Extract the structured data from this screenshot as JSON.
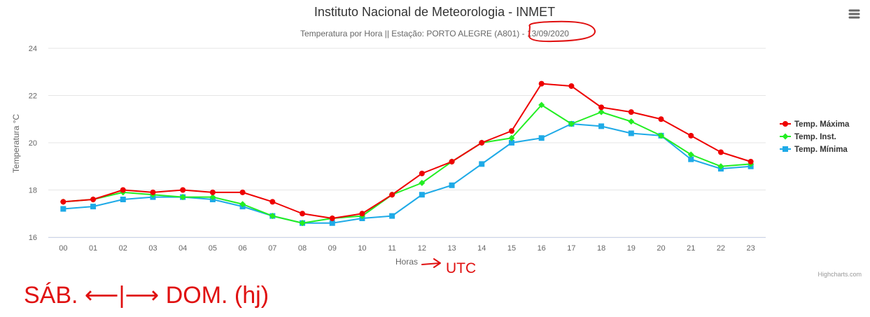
{
  "colors": {
    "max": "#ee0000",
    "inst": "#22ee22",
    "min": "#1eaae7",
    "annotation": "#e01010",
    "grid": "#e6e6e6",
    "axis_text": "#666666",
    "title": "#333333"
  },
  "icons": {
    "menu": "hamburger-menu-icon"
  },
  "credits": "Highcharts.com",
  "annotations": {
    "utc_label": "UTC",
    "handwriting": "SÁB. ⟵|⟶ DOM. (hj)"
  },
  "chart_data": {
    "type": "line",
    "title": "Instituto Nacional de Meteorologia - INMET",
    "subtitle": "Temperatura por Hora || Estação: PORTO ALEGRE (A801) - 13/09/2020",
    "xlabel": "Horas",
    "ylabel": "Temperatura °C",
    "categories": [
      "00",
      "01",
      "02",
      "03",
      "04",
      "05",
      "06",
      "07",
      "08",
      "09",
      "10",
      "11",
      "12",
      "13",
      "14",
      "15",
      "16",
      "17",
      "18",
      "19",
      "20",
      "21",
      "22",
      "23"
    ],
    "ylim": [
      16,
      24
    ],
    "yticks": [
      16,
      18,
      20,
      22,
      24
    ],
    "grid": true,
    "legend_position": "right",
    "series": [
      {
        "name": "Temp. Máxima",
        "key": "max",
        "marker": "circle",
        "values": [
          17.5,
          17.6,
          18.0,
          17.9,
          18.0,
          17.9,
          17.9,
          17.5,
          17.0,
          16.8,
          17.0,
          17.8,
          18.7,
          19.2,
          20.0,
          20.5,
          22.5,
          22.4,
          21.5,
          21.3,
          21.0,
          20.3,
          19.6,
          19.2
        ]
      },
      {
        "name": "Temp. Inst.",
        "key": "inst",
        "marker": "diamond",
        "values": [
          17.5,
          17.6,
          17.9,
          17.8,
          17.7,
          17.7,
          17.4,
          16.9,
          16.6,
          16.8,
          16.9,
          17.8,
          18.3,
          19.2,
          20.0,
          20.2,
          21.6,
          20.8,
          21.3,
          20.9,
          20.3,
          19.5,
          19.0,
          19.1
        ]
      },
      {
        "name": "Temp. Mínima",
        "key": "min",
        "marker": "square",
        "values": [
          17.2,
          17.3,
          17.6,
          17.7,
          17.7,
          17.6,
          17.3,
          16.9,
          16.6,
          16.6,
          16.8,
          16.9,
          17.8,
          18.2,
          19.1,
          20.0,
          20.2,
          20.8,
          20.7,
          20.4,
          20.3,
          19.3,
          18.9,
          19.0
        ]
      }
    ]
  }
}
